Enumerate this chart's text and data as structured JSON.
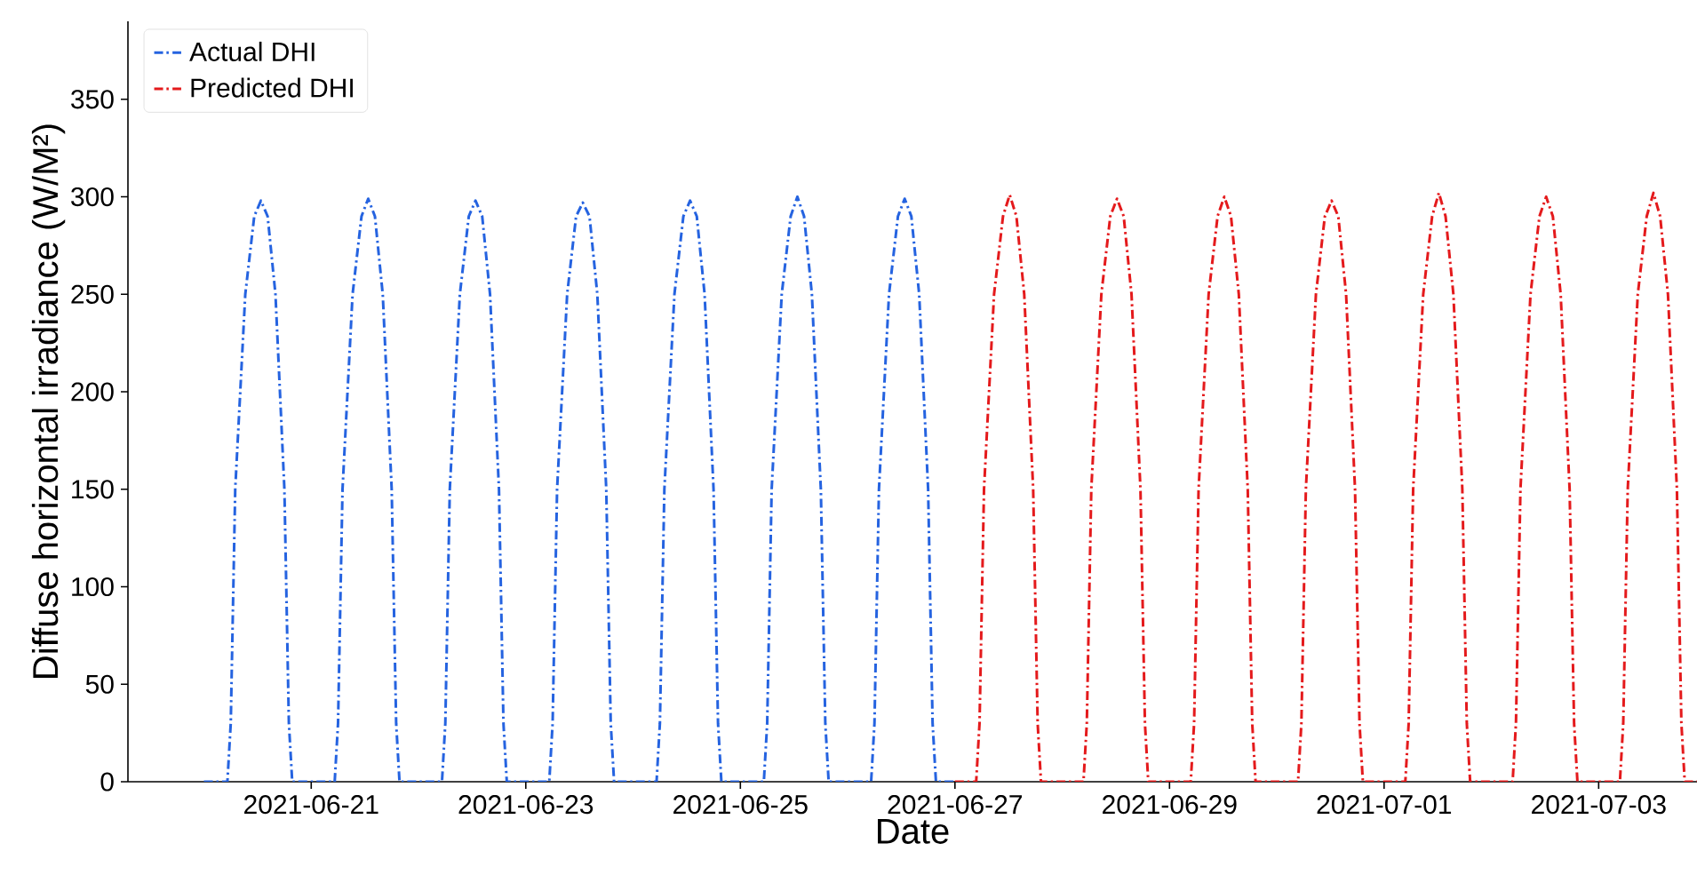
{
  "chart_data": {
    "type": "line",
    "xlabel": "Date",
    "ylabel": "Diffuse horizontal irradiance (W/M²)",
    "xlim": [
      "2021-06-19T07:00",
      "2021-07-03T22:00"
    ],
    "xticks": [
      "2021-06-21",
      "2021-06-23",
      "2021-06-25",
      "2021-06-27",
      "2021-06-29",
      "2021-07-01",
      "2021-07-03"
    ],
    "ylim": [
      0,
      390
    ],
    "yticks": [
      0,
      50,
      100,
      150,
      200,
      250,
      300,
      350
    ],
    "grid": false,
    "legend": "top left",
    "line_style": "dashdot",
    "series": [
      {
        "name": "Actual DHI",
        "color": "#2563e0",
        "x": [
          "2021-06-20T00:00",
          "2021-06-20T05:15",
          "2021-06-20T06:00",
          "2021-06-20T07:00",
          "2021-06-20T09:15",
          "2021-06-20T11:15",
          "2021-06-20T12:45",
          "2021-06-20T14:15",
          "2021-06-20T16:00",
          "2021-06-20T18:00",
          "2021-06-20T19:00",
          "2021-06-20T19:45",
          "2021-06-21T00:00",
          "2021-06-21T05:15",
          "2021-06-21T06:00",
          "2021-06-21T07:00",
          "2021-06-21T09:15",
          "2021-06-21T11:15",
          "2021-06-21T12:45",
          "2021-06-21T14:15",
          "2021-06-21T16:00",
          "2021-06-21T18:00",
          "2021-06-21T19:00",
          "2021-06-21T19:45",
          "2021-06-22T00:00",
          "2021-06-22T05:15",
          "2021-06-22T06:00",
          "2021-06-22T07:00",
          "2021-06-22T09:15",
          "2021-06-22T11:15",
          "2021-06-22T12:45",
          "2021-06-22T14:15",
          "2021-06-22T16:00",
          "2021-06-22T18:00",
          "2021-06-22T19:00",
          "2021-06-22T19:45",
          "2021-06-23T00:00",
          "2021-06-23T05:15",
          "2021-06-23T06:00",
          "2021-06-23T07:00",
          "2021-06-23T09:15",
          "2021-06-23T11:15",
          "2021-06-23T12:45",
          "2021-06-23T14:15",
          "2021-06-23T16:00",
          "2021-06-23T18:00",
          "2021-06-23T19:00",
          "2021-06-23T19:45",
          "2021-06-24T00:00",
          "2021-06-24T05:15",
          "2021-06-24T06:00",
          "2021-06-24T07:00",
          "2021-06-24T09:15",
          "2021-06-24T11:15",
          "2021-06-24T12:45",
          "2021-06-24T14:15",
          "2021-06-24T16:00",
          "2021-06-24T18:00",
          "2021-06-24T19:00",
          "2021-06-24T19:45",
          "2021-06-25T00:00",
          "2021-06-25T05:15",
          "2021-06-25T06:00",
          "2021-06-25T07:00",
          "2021-06-25T09:15",
          "2021-06-25T11:15",
          "2021-06-25T12:45",
          "2021-06-25T14:15",
          "2021-06-25T16:00",
          "2021-06-25T18:00",
          "2021-06-25T19:00",
          "2021-06-25T19:45",
          "2021-06-26T00:00",
          "2021-06-26T05:15",
          "2021-06-26T06:00",
          "2021-06-26T07:00",
          "2021-06-26T09:15",
          "2021-06-26T11:15",
          "2021-06-26T12:45",
          "2021-06-26T14:15",
          "2021-06-26T16:00",
          "2021-06-26T18:00",
          "2021-06-26T19:00",
          "2021-06-26T19:45",
          "2021-06-27T00:00"
        ],
        "values": [
          0,
          0,
          30,
          150,
          250,
          290,
          298,
          290,
          250,
          150,
          30,
          0,
          0,
          0,
          30,
          150,
          250,
          290,
          299,
          290,
          250,
          150,
          30,
          0,
          0,
          0,
          30,
          150,
          250,
          290,
          298,
          290,
          250,
          150,
          30,
          0,
          0,
          0,
          30,
          150,
          250,
          290,
          297,
          290,
          250,
          150,
          30,
          0,
          0,
          0,
          30,
          150,
          250,
          290,
          298,
          290,
          250,
          150,
          30,
          0,
          0,
          0,
          30,
          150,
          250,
          290,
          300,
          290,
          250,
          150,
          30,
          0,
          0,
          0,
          30,
          150,
          250,
          290,
          299,
          290,
          250,
          150,
          30,
          0,
          0
        ]
      },
      {
        "name": "Predicted DHI",
        "color": "#e41a1c",
        "x": [
          "2021-06-27T00:00",
          "2021-06-27T04:45",
          "2021-06-27T05:30",
          "2021-06-27T06:30",
          "2021-06-27T08:45",
          "2021-06-27T10:45",
          "2021-06-27T12:15",
          "2021-06-27T13:45",
          "2021-06-27T15:30",
          "2021-06-27T17:30",
          "2021-06-27T18:30",
          "2021-06-27T19:15",
          "2021-06-28T00:00",
          "2021-06-28T04:45",
          "2021-06-28T05:30",
          "2021-06-28T06:30",
          "2021-06-28T08:45",
          "2021-06-28T10:45",
          "2021-06-28T12:15",
          "2021-06-28T13:45",
          "2021-06-28T15:30",
          "2021-06-28T17:30",
          "2021-06-28T18:30",
          "2021-06-28T19:15",
          "2021-06-29T00:00",
          "2021-06-29T04:45",
          "2021-06-29T05:30",
          "2021-06-29T06:30",
          "2021-06-29T08:45",
          "2021-06-29T10:45",
          "2021-06-29T12:15",
          "2021-06-29T13:45",
          "2021-06-29T15:30",
          "2021-06-29T17:30",
          "2021-06-29T18:30",
          "2021-06-29T19:15",
          "2021-06-30T00:00",
          "2021-06-30T04:45",
          "2021-06-30T05:30",
          "2021-06-30T06:30",
          "2021-06-30T08:45",
          "2021-06-30T10:45",
          "2021-06-30T12:15",
          "2021-06-30T13:45",
          "2021-06-30T15:30",
          "2021-06-30T17:30",
          "2021-06-30T18:30",
          "2021-06-30T19:15",
          "2021-07-01T00:00",
          "2021-07-01T04:45",
          "2021-07-01T05:30",
          "2021-07-01T06:30",
          "2021-07-01T08:45",
          "2021-07-01T10:45",
          "2021-07-01T12:15",
          "2021-07-01T13:45",
          "2021-07-01T15:30",
          "2021-07-01T17:30",
          "2021-07-01T18:30",
          "2021-07-01T19:15",
          "2021-07-02T00:00",
          "2021-07-02T04:45",
          "2021-07-02T05:30",
          "2021-07-02T06:30",
          "2021-07-02T08:45",
          "2021-07-02T10:45",
          "2021-07-02T12:15",
          "2021-07-02T13:45",
          "2021-07-02T15:30",
          "2021-07-02T17:30",
          "2021-07-02T18:30",
          "2021-07-02T19:15",
          "2021-07-03T00:00",
          "2021-07-03T04:45",
          "2021-07-03T05:30",
          "2021-07-03T06:30",
          "2021-07-03T08:45",
          "2021-07-03T10:45",
          "2021-07-03T12:15",
          "2021-07-03T13:45",
          "2021-07-03T15:30",
          "2021-07-03T17:30",
          "2021-07-03T18:30",
          "2021-07-03T19:15",
          "2021-07-03T22:00"
        ],
        "values": [
          0,
          0,
          30,
          150,
          250,
          290,
          301,
          290,
          250,
          150,
          30,
          0,
          0,
          0,
          30,
          150,
          250,
          290,
          299,
          290,
          250,
          150,
          30,
          0,
          0,
          0,
          30,
          150,
          250,
          290,
          300,
          290,
          250,
          150,
          30,
          0,
          0,
          0,
          30,
          150,
          250,
          290,
          298,
          290,
          250,
          150,
          30,
          0,
          0,
          0,
          30,
          150,
          250,
          290,
          302,
          290,
          250,
          150,
          30,
          0,
          0,
          0,
          30,
          150,
          250,
          290,
          300,
          290,
          250,
          150,
          30,
          0,
          0,
          0,
          30,
          150,
          250,
          290,
          302,
          290,
          250,
          150,
          30,
          0,
          0
        ]
      }
    ]
  }
}
